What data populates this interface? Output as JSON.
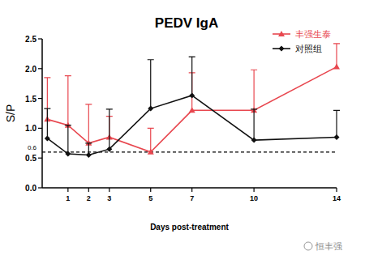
{
  "chart_data": {
    "type": "line",
    "title": "PEDV  IgA",
    "x_label": "Days post-treatment",
    "y_label": "S/P",
    "x": [
      0,
      1,
      2,
      3,
      5,
      7,
      10,
      14
    ],
    "series": [
      {
        "name": "丰强生泰",
        "color": "#e8474f",
        "marker": "triangle",
        "line_style": "solid",
        "values": [
          1.15,
          1.05,
          0.75,
          0.85,
          0.6,
          1.3,
          1.3,
          2.03
        ],
        "errors": [
          0.7,
          0.83,
          0.65,
          0.35,
          0.4,
          0.63,
          0.68,
          0.39
        ]
      },
      {
        "name": "对照组",
        "color": "#111111",
        "marker": "diamond",
        "line_style": "solid",
        "values": [
          0.83,
          0.57,
          0.55,
          0.65,
          1.33,
          1.55,
          0.8,
          0.85
        ],
        "errors": [
          0.5,
          0.48,
          0.2,
          0.67,
          0.82,
          0.65,
          0.52,
          0.45
        ]
      }
    ],
    "xlim": [
      -0.25,
      14
    ],
    "xticks": [
      1,
      2,
      3,
      5,
      7,
      10,
      14
    ],
    "ylim": [
      0,
      2.5
    ],
    "yticks": [
      {
        "value": 0,
        "label": "0.0"
      },
      {
        "value": 0.5,
        "label": "0.5"
      },
      {
        "value": 1,
        "label": "1.0"
      },
      {
        "value": 1.5,
        "label": "1.5"
      },
      {
        "value": 2,
        "label": "2.0"
      },
      {
        "value": 2.5,
        "label": "2.5"
      }
    ],
    "annotations": [
      {
        "text": "0.6",
        "y": 0.6
      },
      {
        "text": "恒丰强"
      }
    ],
    "legend": "top-right",
    "grid": false
  }
}
